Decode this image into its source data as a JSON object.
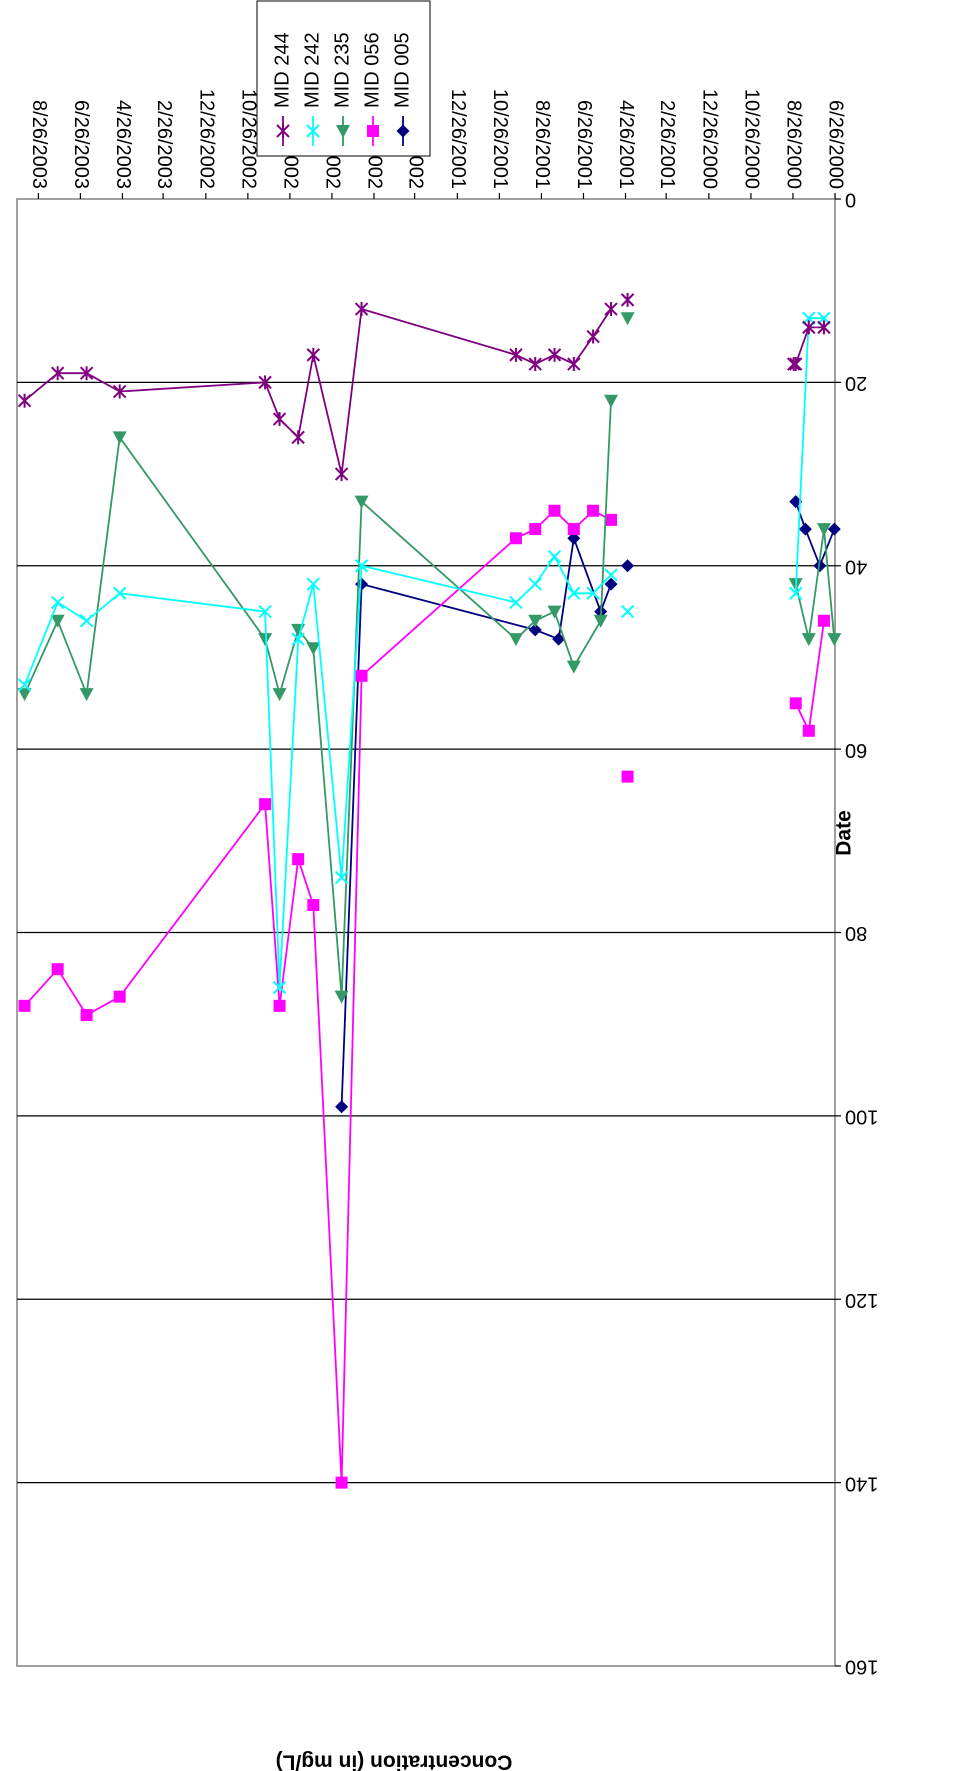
{
  "chart_data": {
    "type": "line",
    "orientation": "rotated-180",
    "title": "",
    "xlabel": "Date",
    "ylabel": "Concentration (in mg/L)",
    "ylim": [
      0,
      160
    ],
    "yticks": [
      0,
      20,
      40,
      60,
      80,
      100,
      120,
      140,
      160
    ],
    "xlim": [
      "6/26/2000",
      "9/26/2003"
    ],
    "xticks": [
      "6/26/2000",
      "8/26/2000",
      "10/26/2000",
      "12/26/2000",
      "2/26/2001",
      "4/26/2001",
      "6/26/2001",
      "8/26/2001",
      "10/26/2001",
      "12/26/2001",
      "2/26/2002",
      "4/26/2002",
      "6/26/2002",
      "8/26/2002",
      "10/26/2002",
      "12/26/2002",
      "2/26/2003",
      "4/26/2003",
      "6/26/2003",
      "8/26/2003"
    ],
    "grid": "horizontal",
    "legend": "outside-top",
    "series": [
      {
        "name": "MID 005",
        "color": "#000080",
        "marker": "diamond",
        "points": [
          [
            "6/27/2000",
            36,
            true
          ],
          [
            "7/18/2000",
            40,
            false
          ],
          [
            "8/8/2000",
            36,
            false
          ],
          [
            "8/22/2000",
            33,
            false
          ],
          [
            "4/23/2001",
            40,
            true
          ],
          [
            "5/17/2001",
            42,
            true
          ],
          [
            "6/1/2001",
            45,
            false
          ],
          [
            "7/10/2001",
            37,
            false
          ],
          [
            "8/1/2001",
            48,
            false
          ],
          [
            "9/4/2001",
            47,
            false
          ],
          [
            "5/14/2002",
            42,
            false
          ],
          [
            "6/12/2002",
            99,
            false
          ]
        ]
      },
      {
        "name": "MID 056",
        "color": "#ff00ff",
        "marker": "square",
        "points": [
          [
            "7/12/2000",
            46,
            true
          ],
          [
            "8/3/2000",
            58,
            false
          ],
          [
            "8/22/2000",
            55,
            false
          ],
          [
            "4/23/2001",
            63,
            true
          ],
          [
            "5/17/2001",
            35,
            true
          ],
          [
            "6/12/2001",
            34,
            false
          ],
          [
            "7/10/2001",
            36,
            false
          ],
          [
            "8/7/2001",
            34,
            false
          ],
          [
            "9/4/2001",
            36,
            false
          ],
          [
            "10/2/2001",
            37,
            false
          ],
          [
            "5/14/2002",
            52,
            false
          ],
          [
            "6/12/2002",
            140,
            false
          ],
          [
            "7/23/2002",
            77,
            false
          ],
          [
            "8/14/2002",
            72,
            false
          ],
          [
            "9/10/2002",
            88,
            false
          ],
          [
            "10/1/2002",
            66,
            false
          ],
          [
            "4/30/2003",
            87,
            false
          ],
          [
            "6/17/2003",
            89,
            false
          ],
          [
            "7/29/2003",
            84,
            false
          ],
          [
            "9/15/2003",
            88,
            false
          ]
        ]
      },
      {
        "name": "MID 235",
        "color": "#339966",
        "marker": "triangle",
        "points": [
          [
            "6/27/2000",
            48,
            true
          ],
          [
            "7/12/2000",
            36,
            false
          ],
          [
            "8/3/2000",
            48,
            false
          ],
          [
            "8/22/2000",
            42,
            false
          ],
          [
            "4/23/2001",
            13,
            true
          ],
          [
            "5/17/2001",
            22,
            true
          ],
          [
            "6/1/2001",
            46,
            false
          ],
          [
            "7/10/2001",
            51,
            false
          ],
          [
            "8/7/2001",
            45,
            false
          ],
          [
            "9/4/2001",
            46,
            false
          ],
          [
            "10/2/2001",
            48,
            false
          ],
          [
            "5/14/2002",
            33,
            false
          ],
          [
            "6/12/2002",
            87,
            false
          ],
          [
            "7/23/2002",
            49,
            false
          ],
          [
            "8/14/2002",
            47,
            false
          ],
          [
            "9/10/2002",
            54,
            false
          ],
          [
            "10/1/2002",
            48,
            false
          ],
          [
            "4/30/2003",
            26,
            false
          ],
          [
            "6/17/2003",
            54,
            false
          ],
          [
            "7/29/2003",
            46,
            false
          ],
          [
            "9/15/2003",
            54,
            false
          ]
        ]
      },
      {
        "name": "MID 242",
        "color": "#00ffff",
        "marker": "x",
        "points": [
          [
            "7/12/2000",
            13,
            true
          ],
          [
            "8/3/2000",
            13,
            false
          ],
          [
            "8/22/2000",
            43,
            false
          ],
          [
            "4/23/2001",
            45,
            true
          ],
          [
            "5/17/2001",
            41,
            true
          ],
          [
            "6/12/2001",
            43,
            false
          ],
          [
            "7/10/2001",
            43,
            false
          ],
          [
            "8/7/2001",
            39,
            false
          ],
          [
            "9/4/2001",
            42,
            false
          ],
          [
            "10/2/2001",
            44,
            false
          ],
          [
            "5/14/2002",
            40,
            false
          ],
          [
            "6/12/2002",
            74,
            false
          ],
          [
            "7/23/2002",
            42,
            false
          ],
          [
            "8/14/2002",
            48,
            false
          ],
          [
            "9/10/2002",
            86,
            false
          ],
          [
            "10/1/2002",
            45,
            false
          ],
          [
            "4/30/2003",
            43,
            false
          ],
          [
            "6/17/2003",
            46,
            false
          ],
          [
            "7/29/2003",
            44,
            false
          ],
          [
            "9/15/2003",
            53,
            false
          ]
        ]
      },
      {
        "name": "MID 244",
        "color": "#800080",
        "marker": "star",
        "points": [
          [
            "7/12/2000",
            14,
            true
          ],
          [
            "8/3/2000",
            14,
            false
          ],
          [
            "8/22/2000",
            18,
            false
          ],
          [
            "8/25/2000",
            18,
            false
          ],
          [
            "4/23/2001",
            11,
            true
          ],
          [
            "5/17/2001",
            12,
            true
          ],
          [
            "6/12/2001",
            15,
            false
          ],
          [
            "7/10/2001",
            18,
            false
          ],
          [
            "8/7/2001",
            17,
            false
          ],
          [
            "9/4/2001",
            18,
            false
          ],
          [
            "10/2/2001",
            17,
            false
          ],
          [
            "5/14/2002",
            12,
            false
          ],
          [
            "6/12/2002",
            30,
            false
          ],
          [
            "7/23/2002",
            17,
            false
          ],
          [
            "8/14/2002",
            26,
            false
          ],
          [
            "9/10/2002",
            24,
            false
          ],
          [
            "10/1/2002",
            20,
            false
          ],
          [
            "4/30/2003",
            21,
            false
          ],
          [
            "6/17/2003",
            19,
            false
          ],
          [
            "7/29/2003",
            19,
            false
          ],
          [
            "9/15/2003",
            22,
            false
          ]
        ]
      }
    ]
  }
}
